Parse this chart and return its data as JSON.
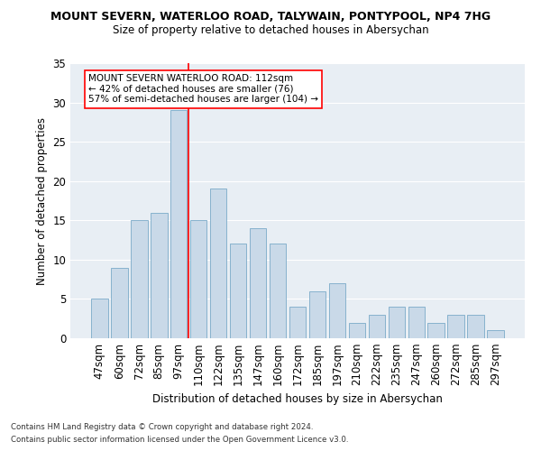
{
  "title": "MOUNT SEVERN, WATERLOO ROAD, TALYWAIN, PONTYPOOL, NP4 7HG",
  "subtitle": "Size of property relative to detached houses in Abersychan",
  "xlabel": "Distribution of detached houses by size in Abersychan",
  "ylabel": "Number of detached properties",
  "categories": [
    "47sqm",
    "60sqm",
    "72sqm",
    "85sqm",
    "97sqm",
    "110sqm",
    "122sqm",
    "135sqm",
    "147sqm",
    "160sqm",
    "172sqm",
    "185sqm",
    "197sqm",
    "210sqm",
    "222sqm",
    "235sqm",
    "247sqm",
    "260sqm",
    "272sqm",
    "285sqm",
    "297sqm"
  ],
  "values": [
    5,
    9,
    15,
    16,
    29,
    15,
    19,
    12,
    14,
    12,
    4,
    6,
    7,
    2,
    3,
    4,
    4,
    2,
    3,
    3,
    1
  ],
  "bar_color": "#c9d9e8",
  "bar_edge_color": "#7aaac8",
  "vline_x_index": 4.5,
  "vline_color": "red",
  "annotation_title": "MOUNT SEVERN WATERLOO ROAD: 112sqm",
  "annotation_line1": "← 42% of detached houses are smaller (76)",
  "annotation_line2": "57% of semi-detached houses are larger (104) →",
  "ylim": [
    0,
    35
  ],
  "yticks": [
    0,
    5,
    10,
    15,
    20,
    25,
    30,
    35
  ],
  "bg_color": "#e8eef4",
  "grid_color": "white",
  "footer_line1": "Contains HM Land Registry data © Crown copyright and database right 2024.",
  "footer_line2": "Contains public sector information licensed under the Open Government Licence v3.0."
}
